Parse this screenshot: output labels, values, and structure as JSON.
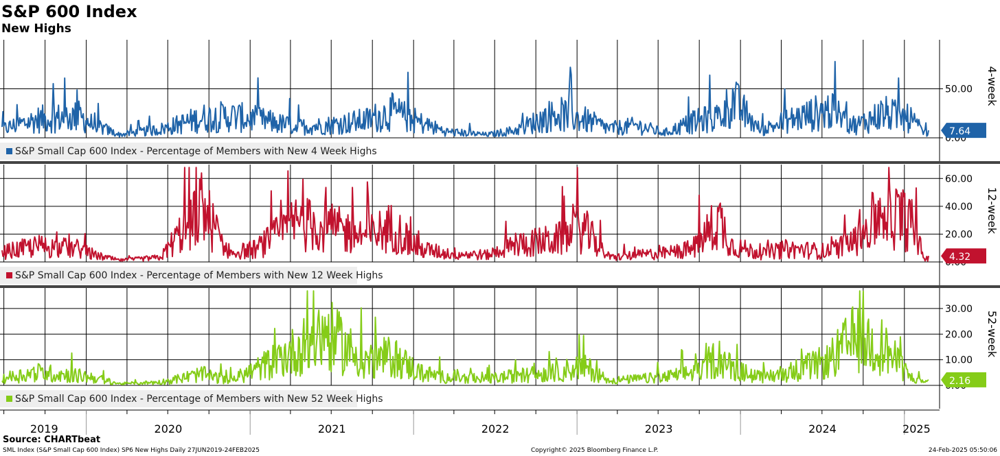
{
  "header": {
    "title": "S&P 600 Index",
    "subtitle": "New Highs"
  },
  "footer": {
    "source": "Source: CHARTbeat",
    "left": "SML Index (S&P Small Cap 600 Index) SP6 New Highs  Daily 27JUN2019-24FEB2025",
    "center": "Copyright© 2025 Bloomberg Finance L.P.",
    "right": "24-Feb-2025 05:50:06"
  },
  "colors": {
    "four_week": "#1f63a8",
    "twelve_week": "#c1122e",
    "fifty_two_week": "#85cc18",
    "grid": "#000000",
    "panel_separator": "#444444"
  },
  "chart_data": [
    {
      "type": "line",
      "panel_label": "4-week",
      "legend": "S&P Small Cap 600 Index - Percentage of Members with New 4 Week Highs",
      "last_value_label": "7.64",
      "y_tick_labels": [
        "50.00",
        "0.00"
      ],
      "ylim": [
        0,
        100
      ],
      "x_range": [
        "2019-06-27",
        "2025-02-24"
      ],
      "x_year_labels": [
        "2019",
        "2020",
        "2021",
        "2022",
        "2023",
        "2024",
        "2025"
      ],
      "grid": true,
      "x": [
        "2019-06",
        "2019-09",
        "2019-12",
        "2020-01",
        "2020-03",
        "2020-06",
        "2020-09",
        "2020-11",
        "2021-01",
        "2021-04",
        "2021-06",
        "2021-09",
        "2021-11",
        "2022-01",
        "2022-03",
        "2022-06",
        "2022-08",
        "2022-11",
        "2023-01",
        "2023-03",
        "2023-05",
        "2023-07",
        "2023-09",
        "2023-11",
        "2023-12",
        "2024-02",
        "2024-04",
        "2024-07",
        "2024-09",
        "2024-11",
        "2025-01",
        "2025-02"
      ],
      "values": [
        12,
        30,
        35,
        22,
        5,
        14,
        32,
        35,
        30,
        18,
        20,
        28,
        42,
        25,
        10,
        5,
        12,
        40,
        30,
        15,
        20,
        8,
        25,
        35,
        60,
        12,
        28,
        45,
        20,
        40,
        30,
        8
      ]
    },
    {
      "type": "line",
      "panel_label": "12-week",
      "legend": "S&P Small Cap 600 Index - Percentage of Members with New 12 Week Highs",
      "last_value_label": "4.32",
      "y_tick_labels": [
        "60.00",
        "40.00",
        "20.00",
        "0.00"
      ],
      "ylim": [
        0,
        70
      ],
      "x_range": [
        "2019-06-27",
        "2025-02-24"
      ],
      "x_year_labels": [
        "2019",
        "2020",
        "2021",
        "2022",
        "2023",
        "2024",
        "2025"
      ],
      "grid": true,
      "x": [
        "2019-06",
        "2019-09",
        "2019-12",
        "2020-01",
        "2020-03",
        "2020-06",
        "2020-09",
        "2020-11",
        "2021-01",
        "2021-04",
        "2021-06",
        "2021-09",
        "2021-11",
        "2022-01",
        "2022-03",
        "2022-06",
        "2022-08",
        "2022-11",
        "2023-01",
        "2023-03",
        "2023-05",
        "2023-07",
        "2023-09",
        "2023-11",
        "2023-12",
        "2024-02",
        "2024-04",
        "2024-07",
        "2024-09",
        "2024-11",
        "2025-01",
        "2025-02"
      ],
      "values": [
        10,
        18,
        15,
        8,
        2,
        5,
        63,
        10,
        15,
        45,
        40,
        30,
        40,
        15,
        10,
        8,
        20,
        25,
        38,
        5,
        8,
        10,
        15,
        48,
        18,
        10,
        15,
        12,
        25,
        60,
        45,
        4
      ]
    },
    {
      "type": "line",
      "panel_label": "52-week",
      "legend": "S&P Small Cap 600 Index - Percentage of Members with New 52 Week Highs",
      "last_value_label": "2.16",
      "y_tick_labels": [
        "30.00",
        "20.00",
        "10.00",
        "0.00"
      ],
      "ylim": [
        0,
        38
      ],
      "x_range": [
        "2019-06-27",
        "2025-02-24"
      ],
      "x_year_labels": [
        "2019",
        "2020",
        "2021",
        "2022",
        "2023",
        "2024",
        "2025"
      ],
      "grid": true,
      "x": [
        "2019-06",
        "2019-09",
        "2019-12",
        "2020-01",
        "2020-03",
        "2020-06",
        "2020-09",
        "2020-11",
        "2021-01",
        "2021-04",
        "2021-06",
        "2021-09",
        "2021-11",
        "2022-01",
        "2022-03",
        "2022-06",
        "2022-08",
        "2022-11",
        "2023-01",
        "2023-03",
        "2023-05",
        "2023-07",
        "2023-09",
        "2023-11",
        "2023-12",
        "2024-02",
        "2024-04",
        "2024-07",
        "2024-09",
        "2024-11",
        "2025-01",
        "2025-02"
      ],
      "values": [
        4,
        8,
        6,
        5,
        1,
        2,
        7,
        3,
        10,
        22,
        33,
        15,
        18,
        8,
        5,
        4,
        6,
        8,
        12,
        3,
        4,
        5,
        8,
        18,
        10,
        5,
        8,
        15,
        30,
        24,
        5,
        2
      ]
    }
  ]
}
